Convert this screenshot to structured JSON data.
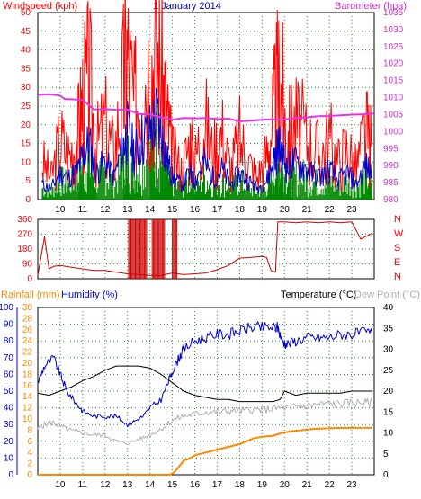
{
  "chart_data": [
    {
      "panel": "top",
      "type": "line",
      "title": "1 January 2014",
      "left_axis_label": "Windspeed (kph)",
      "right_axis_label": "Barometer (hpa)",
      "left_ylim": [
        0,
        50
      ],
      "left_ticks": [
        "0",
        "5",
        "10",
        "15",
        "20",
        "25",
        "30",
        "35",
        "40",
        "45",
        "50"
      ],
      "right_ylim": [
        980,
        1035
      ],
      "right_ticks": [
        "980",
        "985",
        "990",
        "995",
        "1000",
        "1005",
        "1010",
        "1015",
        "1020",
        "1025",
        "1030",
        "1035"
      ],
      "xlim": [
        9.0,
        24.0
      ],
      "x_ticks": [
        "10",
        "11",
        "12",
        "13",
        "14",
        "15",
        "16",
        "17",
        "18",
        "19",
        "20",
        "21",
        "22",
        "23"
      ],
      "grid": true,
      "colors": {
        "gust": "#ff0000",
        "average": "#0000cc",
        "speed": "#008800",
        "barometer": "#e633e6",
        "axis_left": "#ff0000",
        "axis_right": "#cc33cc",
        "title": "#0000aa"
      },
      "series": [
        {
          "key": "gust",
          "x": [
            9.2,
            9.6,
            10.0,
            10.4,
            10.8,
            11.0,
            11.3,
            11.6,
            12.0,
            12.4,
            12.8,
            13.0,
            13.3,
            13.6,
            14.0,
            14.3,
            14.6,
            14.8,
            15.0,
            15.4,
            15.8,
            16.0,
            16.4,
            16.8,
            17.2,
            17.6,
            18.0,
            18.4,
            18.8,
            19.2,
            19.5,
            19.7,
            19.9,
            20.1,
            20.4,
            20.8,
            21.2,
            21.6,
            22.0,
            22.4,
            22.8,
            23.2,
            23.6,
            23.9
          ],
          "values": [
            10,
            6,
            16,
            12,
            18,
            26,
            32,
            14,
            20,
            12,
            30,
            38,
            24,
            34,
            36,
            40,
            30,
            20,
            12,
            8,
            16,
            10,
            22,
            12,
            18,
            8,
            16,
            10,
            6,
            12,
            22,
            30,
            28,
            16,
            20,
            18,
            14,
            12,
            16,
            10,
            14,
            8,
            18,
            14
          ]
        },
        {
          "key": "average",
          "x": [
            9.2,
            9.6,
            10.0,
            10.4,
            10.8,
            11.0,
            11.3,
            11.6,
            12.0,
            12.4,
            12.8,
            13.0,
            13.3,
            13.6,
            14.0,
            14.3,
            14.6,
            14.8,
            15.0,
            15.4,
            15.8,
            16.0,
            16.4,
            16.8,
            17.2,
            17.6,
            18.0,
            18.4,
            18.8,
            19.2,
            19.5,
            19.7,
            19.9,
            20.1,
            20.4,
            20.8,
            21.2,
            21.6,
            22.0,
            22.4,
            22.8,
            23.2,
            23.6,
            23.9
          ],
          "values": [
            4,
            3,
            7,
            6,
            8,
            12,
            15,
            7,
            10,
            6,
            14,
            18,
            12,
            16,
            18,
            22,
            15,
            10,
            6,
            4,
            7,
            5,
            10,
            6,
            8,
            4,
            7,
            5,
            3,
            5,
            10,
            14,
            13,
            8,
            10,
            9,
            7,
            6,
            8,
            5,
            7,
            4,
            9,
            7
          ]
        },
        {
          "key": "speed",
          "x": [
            9.2,
            9.6,
            10.0,
            10.4,
            10.8,
            11.0,
            11.3,
            11.6,
            12.0,
            12.4,
            12.8,
            13.0,
            13.3,
            13.6,
            14.0,
            14.3,
            14.6,
            14.8,
            15.0,
            15.4,
            15.8,
            16.0,
            16.4,
            16.8,
            17.2,
            17.6,
            18.0,
            18.4,
            18.8,
            19.2,
            19.5,
            19.7,
            19.9,
            20.1,
            20.4,
            20.8,
            21.2,
            21.6,
            22.0,
            22.4,
            22.8,
            23.2,
            23.6,
            23.9
          ],
          "values": [
            3,
            2,
            5,
            4,
            6,
            8,
            9,
            5,
            7,
            4,
            9,
            11,
            8,
            10,
            12,
            14,
            10,
            6,
            4,
            3,
            5,
            3,
            6,
            4,
            5,
            3,
            5,
            3,
            2,
            3,
            6,
            9,
            8,
            5,
            6,
            6,
            5,
            4,
            5,
            3,
            5,
            3,
            6,
            5
          ]
        },
        {
          "key": "barometer",
          "x": [
            9.0,
            9.5,
            10.0,
            10.2,
            10.5,
            11.0,
            11.5,
            12.0,
            12.5,
            13.0,
            13.5,
            14.0,
            14.5,
            15.0,
            15.5,
            16.0,
            16.5,
            17.0,
            17.5,
            18.0,
            18.5,
            19.0,
            19.5,
            20.0,
            20.5,
            21.0,
            21.5,
            22.0,
            22.5,
            23.0,
            23.5,
            24.0
          ],
          "values": [
            1010.8,
            1011.0,
            1010.6,
            1009.6,
            1009.5,
            1009.3,
            1006.5,
            1006.6,
            1006.4,
            1006.5,
            1005.2,
            1005.0,
            1004.2,
            1003.5,
            1004.0,
            1003.9,
            1004.0,
            1003.7,
            1003.8,
            1003.0,
            1003.2,
            1003.5,
            1003.6,
            1003.6,
            1004.0,
            1004.2,
            1004.5,
            1004.6,
            1004.8,
            1005.0,
            1005.1,
            1005.3
          ]
        }
      ]
    },
    {
      "panel": "middle",
      "type": "line",
      "series_name": "Wind direction",
      "ylim": [
        0,
        360
      ],
      "left_ticks": [
        "0",
        "90",
        "180",
        "270",
        "360"
      ],
      "right_labels": [
        "N",
        "W",
        "S",
        "E",
        "N"
      ],
      "xlim": [
        9.0,
        24.0
      ],
      "grid": true,
      "colors": {
        "direction": "#cc0000",
        "labels": "#ff0000"
      },
      "series": [
        {
          "key": "direction",
          "x": [
            9.0,
            9.3,
            9.5,
            9.7,
            10.0,
            10.5,
            11.0,
            11.5,
            12.0,
            12.5,
            13.0,
            13.5,
            14.0,
            14.5,
            15.0,
            15.5,
            16.0,
            16.5,
            17.0,
            17.5,
            18.0,
            18.5,
            19.0,
            19.2,
            19.4,
            19.6,
            19.7,
            20.0,
            20.5,
            21.0,
            21.5,
            22.0,
            22.5,
            23.0,
            23.4,
            23.6,
            23.9
          ],
          "values": [
            20,
            255,
            60,
            75,
            80,
            70,
            60,
            50,
            50,
            40,
            30,
            25,
            20,
            20,
            35,
            25,
            30,
            35,
            55,
            80,
            125,
            130,
            135,
            130,
            50,
            40,
            345,
            345,
            340,
            345,
            340,
            345,
            340,
            345,
            240,
            255,
            275
          ],
          "spikes": [
            [
              13.05,
              13.9
            ],
            [
              14.1,
              14.7
            ],
            [
              15.0,
              15.25
            ]
          ]
        }
      ]
    },
    {
      "panel": "bottom",
      "type": "line",
      "rainfall_label": "Rainfall (mm)",
      "humidity_label": "Humidity (%)",
      "temperature_label": "Temperature (°C)",
      "dewpoint_label": "Dew Point (°C)",
      "humidity_ticks": [
        "0",
        "10",
        "20",
        "30",
        "40",
        "50",
        "60",
        "70",
        "80",
        "90",
        "100"
      ],
      "rain_ticks": [
        "0",
        "2",
        "4",
        "6",
        "8",
        "10",
        "12",
        "14",
        "16",
        "18",
        "20",
        "22",
        "24",
        "26",
        "28",
        "30"
      ],
      "temp_ticks": [
        "0",
        "5",
        "10",
        "15",
        "20",
        "25",
        "30",
        "35",
        "40"
      ],
      "humidity_ylim": [
        0,
        100
      ],
      "rain_ylim": [
        0,
        30
      ],
      "temp_ylim": [
        0,
        40
      ],
      "xlim": [
        9.0,
        24.0
      ],
      "x_ticks": [
        "10",
        "11",
        "12",
        "13",
        "14",
        "15",
        "16",
        "17",
        "18",
        "19",
        "20",
        "21",
        "22",
        "23"
      ],
      "grid": true,
      "colors": {
        "humidity": "#0000cc",
        "temperature": "#000000",
        "dewpoint": "#b0b0b0",
        "rainfall": "#ff8800",
        "rain_axis": "#ff8800",
        "humidity_axis": "#0000cc",
        "dewpoint_label": "#b0b0b0"
      },
      "series": [
        {
          "key": "humidity",
          "x": [
            9.0,
            9.3,
            9.7,
            10.0,
            10.3,
            10.7,
            11.0,
            11.5,
            12.0,
            12.5,
            13.0,
            13.3,
            13.7,
            14.0,
            14.5,
            14.8,
            15.0,
            15.3,
            15.5,
            16.0,
            16.5,
            17.0,
            17.5,
            18.0,
            18.5,
            19.0,
            19.5,
            19.7,
            19.9,
            20.1,
            20.5,
            21.0,
            21.5,
            22.0,
            22.5,
            23.0,
            23.5,
            23.9
          ],
          "values": [
            55,
            65,
            70,
            60,
            50,
            43,
            38,
            35,
            35,
            35,
            30,
            32,
            35,
            40,
            45,
            55,
            62,
            70,
            75,
            80,
            82,
            84,
            84,
            86,
            88,
            88,
            88,
            88,
            80,
            78,
            80,
            82,
            82,
            82,
            84,
            84,
            85,
            85
          ]
        },
        {
          "key": "temperature",
          "x": [
            9.0,
            9.5,
            10.0,
            10.5,
            11.0,
            11.5,
            12.0,
            12.5,
            13.0,
            13.5,
            14.0,
            14.5,
            15.0,
            15.5,
            16.0,
            16.5,
            17.0,
            17.5,
            18.0,
            18.5,
            19.0,
            19.5,
            19.8,
            20.0,
            20.5,
            21.0,
            21.5,
            22.0,
            22.5,
            23.0,
            23.5,
            23.9
          ],
          "values": [
            19.5,
            19,
            20,
            21,
            22.5,
            23.5,
            25,
            26,
            26,
            26,
            25.5,
            24,
            22,
            20,
            19,
            18.5,
            18,
            18,
            17.5,
            17.5,
            17.5,
            17.5,
            18,
            20,
            19,
            19.5,
            19.5,
            19.5,
            19.5,
            20,
            20,
            20
          ]
        },
        {
          "key": "dewpoint",
          "x": [
            9.0,
            9.3,
            9.7,
            10.0,
            10.5,
            11.0,
            11.5,
            12.0,
            12.5,
            13.0,
            13.5,
            14.0,
            14.5,
            15.0,
            15.5,
            16.0,
            16.5,
            17.0,
            17.5,
            18.0,
            18.5,
            19.0,
            19.5,
            20.0,
            20.5,
            21.0,
            21.5,
            22.0,
            22.5,
            23.0,
            23.5,
            23.9
          ],
          "values": [
            11,
            12,
            12.5,
            11.5,
            10.5,
            10,
            9.5,
            9.5,
            8,
            7.5,
            8.5,
            9.5,
            11,
            13,
            14,
            14.5,
            15,
            15,
            15.2,
            15.3,
            15.5,
            15.5,
            15.8,
            16,
            16.2,
            16.5,
            16.8,
            17,
            17,
            17.2,
            17.2,
            17.3
          ]
        },
        {
          "key": "rainfall",
          "x": [
            9.0,
            10.0,
            11.0,
            12.0,
            13.0,
            14.0,
            14.9,
            15.1,
            15.3,
            15.5,
            15.8,
            16.0,
            16.5,
            17.0,
            17.5,
            18.0,
            18.3,
            18.6,
            19.0,
            19.5,
            19.9,
            20.3,
            20.8,
            21.2,
            21.8,
            22.5,
            23.0,
            23.9
          ],
          "values": [
            0,
            0,
            0,
            0,
            0,
            0,
            0,
            0.5,
            1.5,
            2.5,
            3.0,
            3.5,
            4.0,
            4.5,
            5.0,
            5.5,
            6.0,
            6.5,
            6.8,
            7.0,
            7.5,
            7.8,
            8.0,
            8.2,
            8.3,
            8.4,
            8.4,
            8.4
          ]
        }
      ]
    }
  ]
}
